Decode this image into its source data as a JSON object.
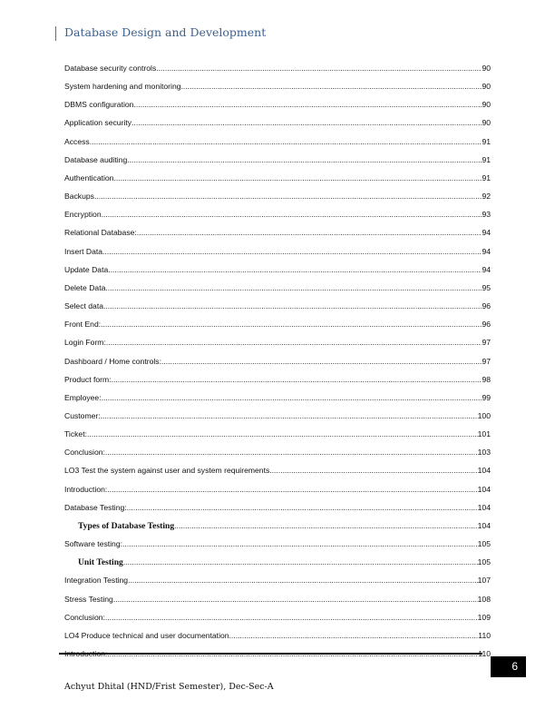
{
  "header": {
    "title": "Database Design and Development"
  },
  "toc": [
    {
      "label": "Database security controls",
      "page": "90"
    },
    {
      "label": "System hardening and monitoring",
      "page": "90"
    },
    {
      "label": "DBMS configuration",
      "page": "90"
    },
    {
      "label": "Application security",
      "page": "90"
    },
    {
      "label": "Access",
      "page": "91"
    },
    {
      "label": "Database auditing",
      "page": "91"
    },
    {
      "label": "Authentication",
      "page": "91"
    },
    {
      "label": "Backups",
      "page": "92"
    },
    {
      "label": "Encryption",
      "page": "93"
    },
    {
      "label": "Relational Database:",
      "page": "94"
    },
    {
      "label": "Insert Data",
      "page": "94"
    },
    {
      "label": "Update Data",
      "page": "94"
    },
    {
      "label": "Delete Data",
      "page": "95"
    },
    {
      "label": "Select data",
      "page": "96"
    },
    {
      "label": "Front End:",
      "page": "96"
    },
    {
      "label": "Login Form:",
      "page": "97"
    },
    {
      "label": "Dashboard / Home controls:",
      "page": "97"
    },
    {
      "label": "Product form:",
      "page": "98"
    },
    {
      "label": "Employee:",
      "page": "99"
    },
    {
      "label": "Customer:",
      "page": "100"
    },
    {
      "label": "Ticket:",
      "page": "101"
    },
    {
      "label": "Conclusion:",
      "page": "103"
    },
    {
      "label": "LO3 Test the system against user and system requirements",
      "page": "104"
    },
    {
      "label": "Introduction:",
      "page": "104"
    },
    {
      "label": "Database Testing:",
      "page": "104"
    },
    {
      "label": "Types of Database Testing",
      "page": "104",
      "sub": true
    },
    {
      "label": "Software testing:",
      "page": "105"
    },
    {
      "label": "Unit Testing",
      "page": "105",
      "sub": true
    },
    {
      "label": "Integration Testing",
      "page": "107"
    },
    {
      "label": "Stress Testing",
      "page": "108"
    },
    {
      "label": "Conclusion:",
      "page": "109"
    },
    {
      "label": "LO4 Produce technical and user documentation",
      "page": "110"
    },
    {
      "label": "Introduction:",
      "page": "110"
    }
  ],
  "footer": {
    "page_number": "6",
    "author": "Achyut Dhital (HND/Frist Semester), Dec-Sec-A"
  }
}
